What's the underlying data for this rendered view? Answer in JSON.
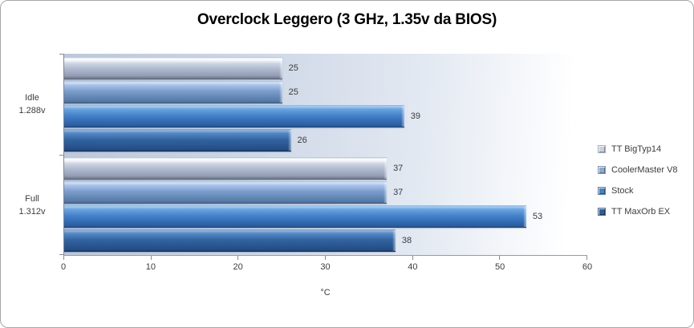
{
  "title": "Overclock Leggero (3 GHz, 1.35v da BIOS)",
  "chart_data": {
    "type": "bar",
    "orientation": "horizontal",
    "title": "Overclock Leggero (3 GHz, 1.35v da BIOS)",
    "xlabel": "°C",
    "xlim": [
      0,
      60
    ],
    "xticks": [
      0,
      10,
      20,
      30,
      40,
      50,
      60
    ],
    "grid": false,
    "legend_position": "right",
    "categories": [
      {
        "label": "Idle",
        "sublabel": "1.288v"
      },
      {
        "label": "Full",
        "sublabel": "1.312v"
      }
    ],
    "series": [
      {
        "name": "TT BigTyp14",
        "values": [
          25,
          37
        ],
        "color": "#b4bed2",
        "legend_color": "#c9d2e0",
        "fill": "linear-gradient(180deg,#aeb7c8 0%,#eef3f9 6%,#ffffff 11%,#cbd4e4 30%,#aab4ca 58%,#929cb4 84%,#6c7588 96%,#5f6778 100%)"
      },
      {
        "name": "CoolerMaster V8",
        "values": [
          25,
          37
        ],
        "color": "#7b9dcd",
        "legend_color": "#8fa9cf",
        "fill": "linear-gradient(180deg,#9fbfe8 0%,#d3e3f6 7%,#a9c4e9 18%,#7b9dcd 45%,#6589b6 70%,#5379a7 90%,#405e84 100%)"
      },
      {
        "name": "Stock",
        "values": [
          39,
          53
        ],
        "color": "#4280c8",
        "legend_color": "#4a80c0",
        "fill": "linear-gradient(180deg,#85b7ea 0%,#a4cdf2 7%,#69a4e0 18%,#4280c8 48%,#3269b1 75%,#2a5c9f 92%,#1d4378 100%)"
      },
      {
        "name": "TT MaxOrb EX",
        "values": [
          26,
          38
        ],
        "color": "#31639f",
        "legend_color": "#305d9a",
        "fill": "linear-gradient(180deg,#6f9cd2 0%,#8fb4e0 7%,#5589c6 18%,#31639f 48%,#285590 75%,#234c84 92%,#153057 100%)"
      }
    ]
  }
}
